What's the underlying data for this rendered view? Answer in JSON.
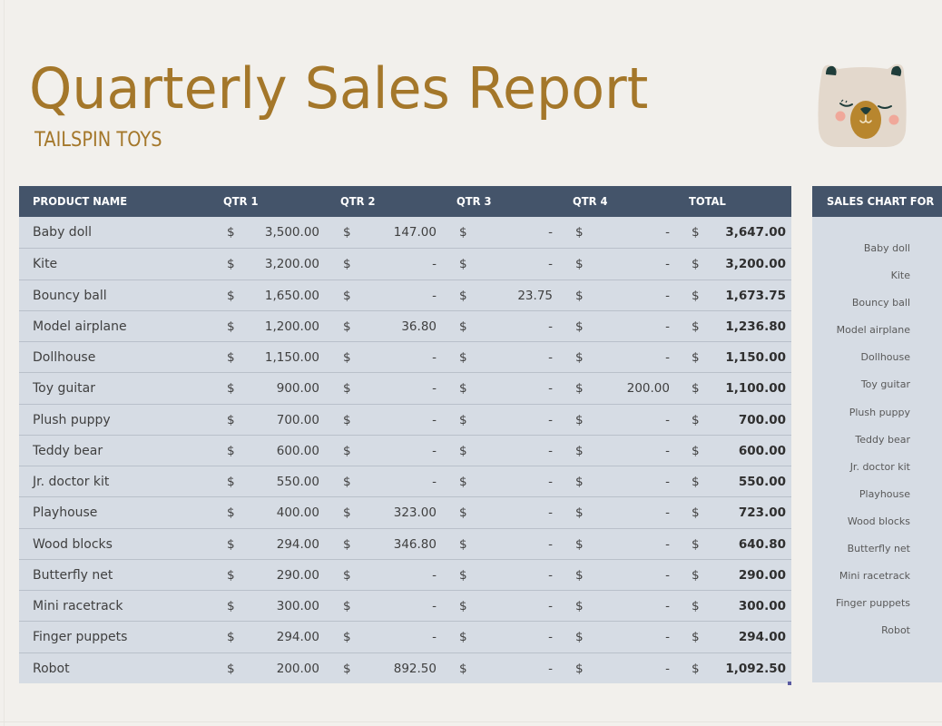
{
  "header": {
    "title": "Quarterly Sales Report",
    "subtitle": "TAILSPIN TOYS",
    "logo_icon": "bear-face-icon"
  },
  "colors": {
    "page_background": "#f2f0ec",
    "title_gold": "#a4772a",
    "table_header": "#44546a",
    "row_background": "#d6dce4",
    "row_separator": "#b9c0ca"
  },
  "table": {
    "columns": [
      "PRODUCT NAME",
      "QTR 1",
      "QTR 2",
      "QTR 3",
      "QTR 4",
      "TOTAL"
    ],
    "currency_symbol": "$",
    "rows": [
      {
        "name": "Baby doll",
        "q1": "3,500.00",
        "q2": "147.00",
        "q3": "-",
        "q4": "-",
        "total": "3,647.00"
      },
      {
        "name": "Kite",
        "q1": "3,200.00",
        "q2": "-",
        "q3": "-",
        "q4": "-",
        "total": "3,200.00"
      },
      {
        "name": "Bouncy ball",
        "q1": "1,650.00",
        "q2": "-",
        "q3": "23.75",
        "q4": "-",
        "total": "1,673.75"
      },
      {
        "name": "Model airplane",
        "q1": "1,200.00",
        "q2": "36.80",
        "q3": "-",
        "q4": "-",
        "total": "1,236.80"
      },
      {
        "name": "Dollhouse",
        "q1": "1,150.00",
        "q2": "-",
        "q3": "-",
        "q4": "-",
        "total": "1,150.00"
      },
      {
        "name": "Toy guitar",
        "q1": "900.00",
        "q2": "-",
        "q3": "-",
        "q4": "200.00",
        "total": "1,100.00"
      },
      {
        "name": "Plush puppy",
        "q1": "700.00",
        "q2": "-",
        "q3": "-",
        "q4": "-",
        "total": "700.00"
      },
      {
        "name": "Teddy bear",
        "q1": "600.00",
        "q2": "-",
        "q3": "-",
        "q4": "-",
        "total": "600.00"
      },
      {
        "name": "Jr. doctor kit",
        "q1": "550.00",
        "q2": "-",
        "q3": "-",
        "q4": "-",
        "total": "550.00"
      },
      {
        "name": "Playhouse",
        "q1": "400.00",
        "q2": "323.00",
        "q3": "-",
        "q4": "-",
        "total": "723.00"
      },
      {
        "name": "Wood blocks",
        "q1": "294.00",
        "q2": "346.80",
        "q3": "-",
        "q4": "-",
        "total": "640.80"
      },
      {
        "name": "Butterfly net",
        "q1": "290.00",
        "q2": "-",
        "q3": "-",
        "q4": "-",
        "total": "290.00"
      },
      {
        "name": "Mini racetrack",
        "q1": "300.00",
        "q2": "-",
        "q3": "-",
        "q4": "-",
        "total": "300.00"
      },
      {
        "name": "Finger puppets",
        "q1": "294.00",
        "q2": "-",
        "q3": "-",
        "q4": "-",
        "total": "294.00"
      },
      {
        "name": "Robot",
        "q1": "200.00",
        "q2": "892.50",
        "q3": "-",
        "q4": "-",
        "total": "1,092.50"
      }
    ]
  },
  "chart_panel": {
    "title": "SALES CHART FOR",
    "labels": [
      "Baby doll",
      "Kite",
      "Bouncy ball",
      "Model airplane",
      "Dollhouse",
      "Toy guitar",
      "Plush puppy",
      "Teddy bear",
      "Jr. doctor kit",
      "Playhouse",
      "Wood blocks",
      "Butterfly net",
      "Mini racetrack",
      "Finger puppets",
      "Robot"
    ]
  }
}
